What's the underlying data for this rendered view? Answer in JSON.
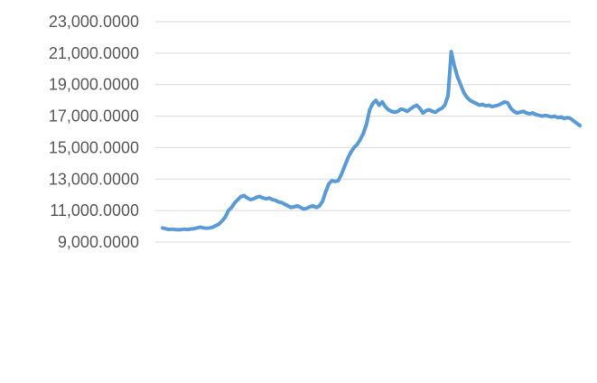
{
  "chart_data": {
    "type": "line",
    "title": "",
    "xlabel": "",
    "ylabel": "",
    "ylim": [
      9000,
      23000
    ],
    "y_ticks": [
      "23,000.0000",
      "21,000.0000",
      "19,000.0000",
      "17,000.0000",
      "15,000.0000",
      "13,000.0000",
      "11,000.0000",
      "9,000.0000"
    ],
    "y_tick_values": [
      23000,
      21000,
      19000,
      17000,
      15000,
      13000,
      11000,
      9000
    ],
    "grid": true,
    "legend": "none",
    "series_color": "#5b9bd5",
    "series": [
      {
        "values": [
          9900,
          9850,
          9800,
          9820,
          9800,
          9780,
          9800,
          9820,
          9800,
          9830,
          9850,
          9900,
          9950,
          9900,
          9880,
          9900,
          9950,
          10050,
          10150,
          10350,
          10600,
          11000,
          11200,
          11500,
          11700,
          11900,
          11950,
          11800,
          11700,
          11750,
          11850,
          11900,
          11800,
          11750,
          11800,
          11700,
          11650,
          11550,
          11500,
          11400,
          11300,
          11200,
          11250,
          11300,
          11200,
          11100,
          11150,
          11250,
          11300,
          11200,
          11300,
          11600,
          12200,
          12700,
          12900,
          12850,
          12900,
          13300,
          13800,
          14300,
          14700,
          15000,
          15200,
          15500,
          15900,
          16500,
          17400,
          17800,
          18000,
          17700,
          17900,
          17600,
          17400,
          17300,
          17250,
          17300,
          17450,
          17400,
          17300,
          17450,
          17600,
          17700,
          17500,
          17200,
          17350,
          17400,
          17300,
          17250,
          17400,
          17500,
          17700,
          18300,
          21100,
          20200,
          19500,
          19000,
          18500,
          18200,
          18000,
          17900,
          17800,
          17700,
          17750,
          17650,
          17700,
          17600,
          17650,
          17700,
          17800,
          17900,
          17850,
          17500,
          17300,
          17200,
          17250,
          17300,
          17200,
          17150,
          17200,
          17100,
          17050,
          17000,
          17050,
          17000,
          16950,
          17000,
          16900,
          16950,
          16850,
          16900,
          16850,
          16700,
          16550,
          16400
        ]
      }
    ]
  }
}
